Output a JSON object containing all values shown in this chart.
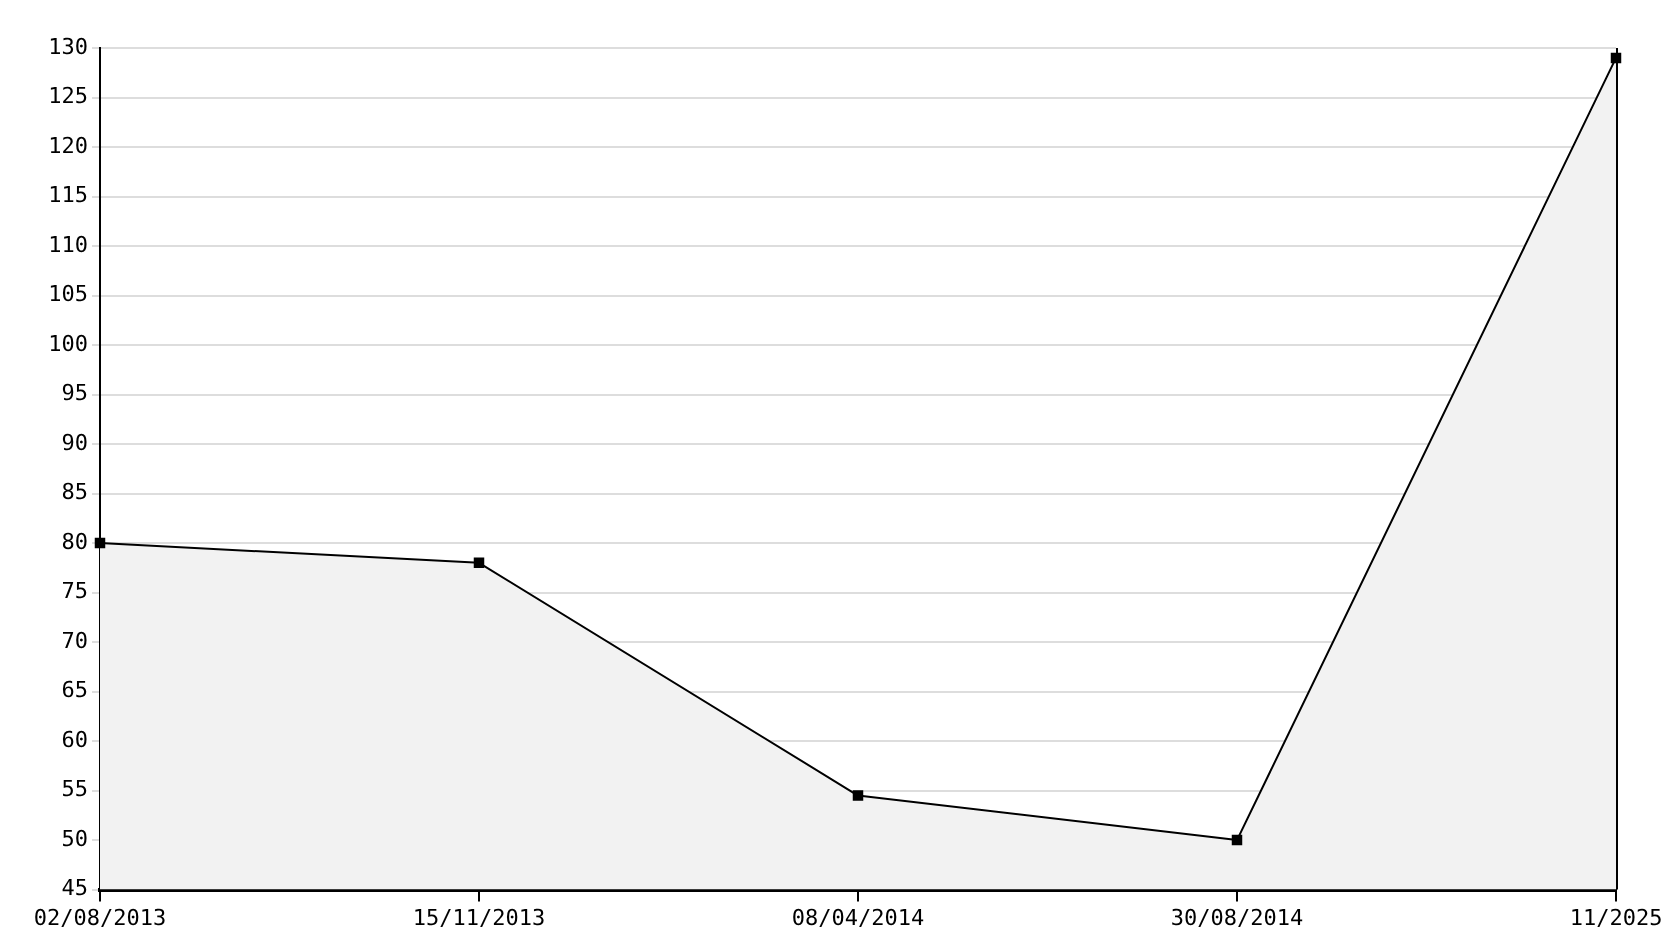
{
  "chart_data": {
    "type": "area",
    "categories": [
      "02/08/2013",
      "15/11/2013",
      "08/04/2014",
      "30/08/2014",
      "11/2025"
    ],
    "series": [
      {
        "color": "#000000",
        "values": [
          80,
          78,
          54.5,
          50,
          129
        ]
      }
    ],
    "ylim": [
      45,
      130
    ],
    "yticks": [
      45,
      50,
      55,
      60,
      65,
      70,
      75,
      80,
      85,
      90,
      95,
      100,
      105,
      110,
      115,
      120,
      125,
      130
    ],
    "grid": "y",
    "legend": false,
    "marker": "square",
    "line_style": "solid"
  }
}
